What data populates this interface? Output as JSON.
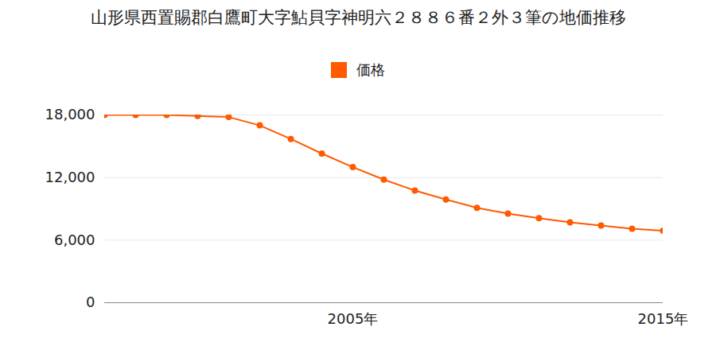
{
  "chart_data": {
    "type": "line",
    "title": "山形県西置賜郡白鷹町大字鮎貝字神明六２８８６番２外３筆の地価推移",
    "x": [
      1997,
      1998,
      1999,
      2000,
      2001,
      2002,
      2003,
      2004,
      2005,
      2006,
      2007,
      2008,
      2009,
      2010,
      2011,
      2012,
      2013,
      2014,
      2015
    ],
    "series": [
      {
        "name": "価格",
        "color": "#ff5a00",
        "marker": "circle",
        "values": [
          18000,
          18000,
          18000,
          17900,
          17800,
          17000,
          15700,
          14300,
          13000,
          11800,
          10750,
          9900,
          9100,
          8550,
          8100,
          7700,
          7400,
          7100,
          6900
        ]
      }
    ],
    "xlim": [
      1997,
      2015
    ],
    "xticks": [
      {
        "value": 2005,
        "label": "2005年"
      },
      {
        "value": 2015,
        "label": "2015年"
      }
    ],
    "ylim": [
      0,
      18000
    ],
    "yticks": [
      0,
      {
        "value": 6000,
        "label": "6,000"
      },
      {
        "value": 12000,
        "label": "12,000"
      },
      {
        "value": 18000,
        "label": "18,000"
      }
    ],
    "grid": true,
    "legend": "top"
  }
}
